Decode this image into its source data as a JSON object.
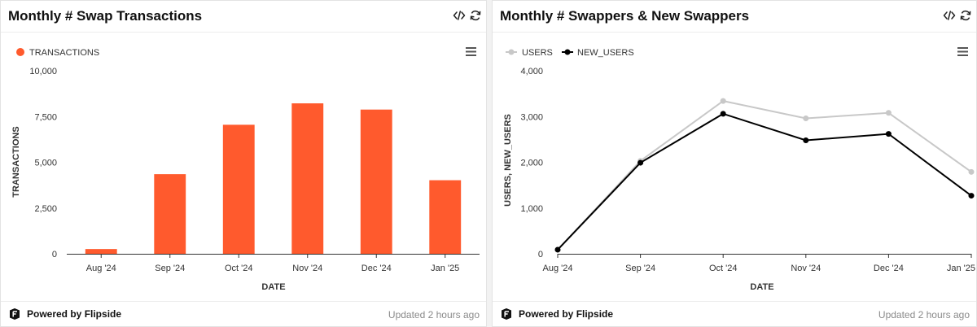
{
  "left_panel": {
    "title": "Monthly # Swap Transactions",
    "footer": {
      "powered": "Powered by Flipside",
      "updated": "Updated 2 hours ago"
    }
  },
  "right_panel": {
    "title": "Monthly # Swappers & New Swappers",
    "footer": {
      "powered": "Powered by Flipside",
      "updated": "Updated 2 hours ago"
    }
  },
  "chart_data": [
    {
      "type": "bar",
      "categories": [
        "Aug '24",
        "Sep '24",
        "Oct '24",
        "Nov '24",
        "Dec '24",
        "Jan '25"
      ],
      "series": [
        {
          "name": "TRANSACTIONS",
          "values": [
            260,
            4350,
            7050,
            8220,
            7880,
            4020
          ],
          "color": "#ff5a2d"
        }
      ],
      "xlabel": "DATE",
      "ylabel": "TRANSACTIONS",
      "ylim": [
        0,
        10000
      ],
      "yticks": [
        0,
        2500,
        5000,
        7500,
        10000
      ],
      "ytick_labels": [
        "0",
        "2,500",
        "5,000",
        "7,500",
        "10,000"
      ],
      "legend": "top-left",
      "grid": false
    },
    {
      "type": "line",
      "categories": [
        "Aug '24",
        "Sep '24",
        "Oct '24",
        "Nov '24",
        "Dec '24",
        "Jan '25"
      ],
      "series": [
        {
          "name": "USERS",
          "values": [
            90,
            2030,
            3340,
            2960,
            3080,
            1790
          ],
          "color": "#c8c8c8"
        },
        {
          "name": "NEW_USERS",
          "values": [
            90,
            1990,
            3060,
            2480,
            2620,
            1270
          ],
          "color": "#000000"
        }
      ],
      "xlabel": "DATE",
      "ylabel": "USERS, NEW_USERS",
      "ylim": [
        0,
        4000
      ],
      "yticks": [
        0,
        1000,
        2000,
        3000,
        4000
      ],
      "ytick_labels": [
        "0",
        "1,000",
        "2,000",
        "3,000",
        "4,000"
      ],
      "legend": "top-left",
      "grid": false
    }
  ]
}
